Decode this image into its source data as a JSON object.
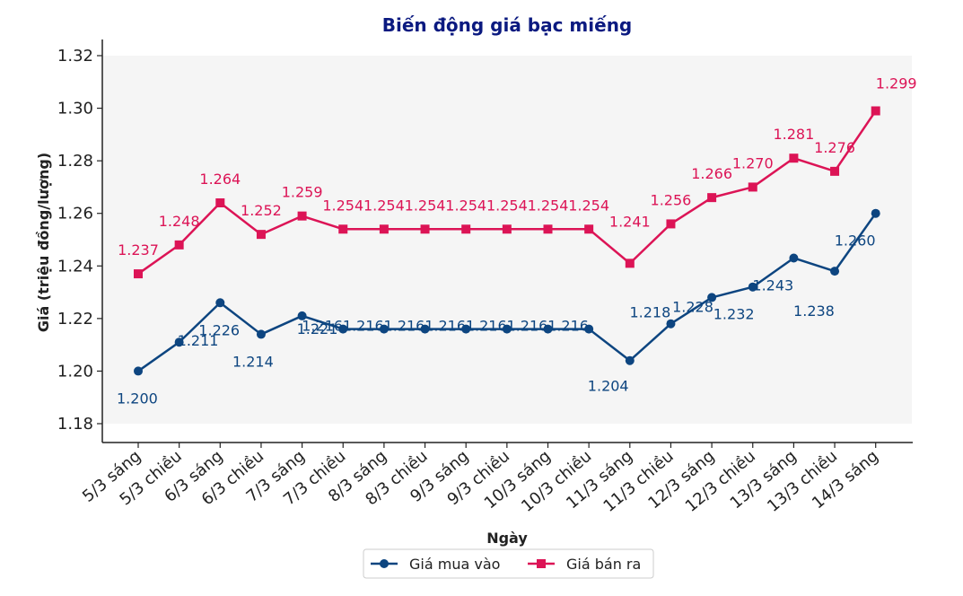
{
  "chart_data": {
    "type": "line",
    "title": "Biến động giá bạc miếng",
    "xlabel": "Ngày",
    "ylabel": "Giá (triệu đồng/lượng)",
    "ylim": [
      1.18,
      1.32
    ],
    "yticks": [
      1.18,
      1.2,
      1.22,
      1.24,
      1.26,
      1.28,
      1.3,
      1.32
    ],
    "ytick_labels": [
      "1.18",
      "1.20",
      "1.22",
      "1.24",
      "1.26",
      "1.28",
      "1.30",
      "1.32"
    ],
    "grid": false,
    "legend_position": "bottom-center",
    "categories": [
      "5/3 sáng",
      "5/3 chiều",
      "6/3 sáng",
      "6/3 chiều",
      "7/3 sáng",
      "7/3 chiều",
      "8/3 sáng",
      "8/3 chiều",
      "9/3 sáng",
      "9/3 chiều",
      "10/3 sáng",
      "10/3 chiều",
      "11/3 sáng",
      "11/3 chiều",
      "12/3 sáng",
      "12/3 chiều",
      "13/3 sáng",
      "13/3 chiều",
      "14/3 sáng"
    ],
    "series": [
      {
        "name": "Giá mua vào",
        "color": "#0d4580",
        "marker": "circle",
        "values": [
          1.2,
          1.211,
          1.226,
          1.214,
          1.221,
          1.216,
          1.216,
          1.216,
          1.216,
          1.216,
          1.216,
          1.216,
          1.204,
          1.218,
          1.228,
          1.232,
          1.243,
          1.238,
          1.26
        ],
        "labels": [
          "1.200",
          "1.211",
          "1.226",
          "1.214",
          "1.221",
          "1.216",
          "1.216",
          "1.216",
          "1.216",
          "1.216",
          "1.216",
          "1.216",
          "1.204",
          "1.218",
          "1.228",
          "1.232",
          "1.243",
          "1.238",
          "1.260"
        ]
      },
      {
        "name": "Giá bán ra",
        "color": "#dc1456",
        "marker": "square",
        "values": [
          1.237,
          1.248,
          1.264,
          1.252,
          1.259,
          1.254,
          1.254,
          1.254,
          1.254,
          1.254,
          1.254,
          1.254,
          1.241,
          1.256,
          1.266,
          1.27,
          1.281,
          1.276,
          1.299
        ],
        "labels": [
          "1.237",
          "1.248",
          "1.264",
          "1.252",
          "1.259",
          "1.254",
          "1.254",
          "1.254",
          "1.254",
          "1.254",
          "1.254",
          "1.254",
          "1.241",
          "1.256",
          "1.266",
          "1.270",
          "1.281",
          "1.276",
          "1.299"
        ]
      }
    ]
  }
}
